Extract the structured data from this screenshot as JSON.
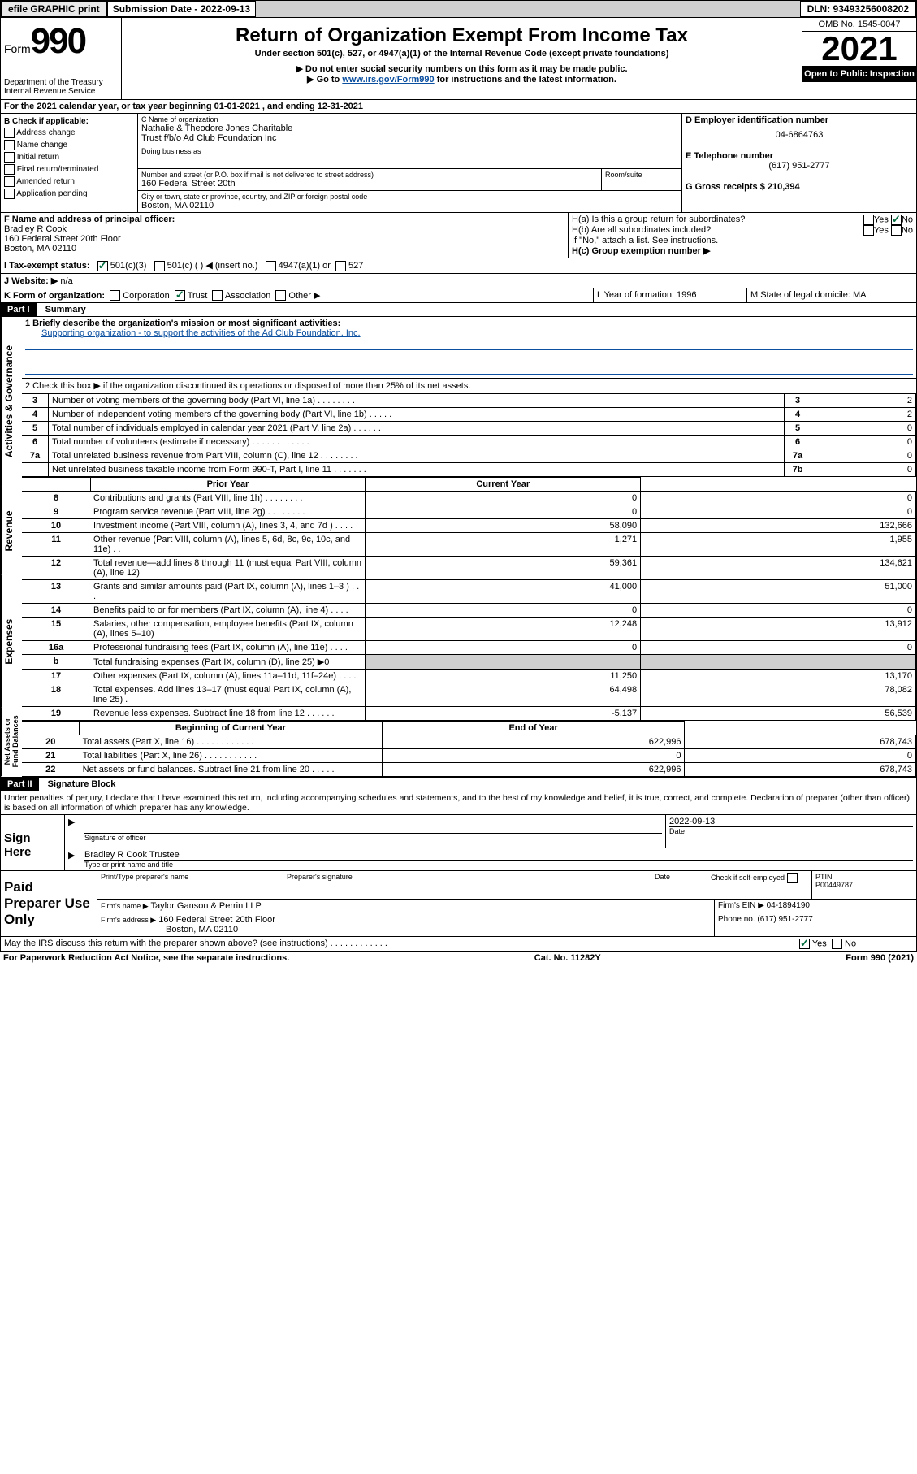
{
  "topbar": {
    "efile": "efile GRAPHIC print",
    "subdate_label": "Submission Date - 2022-09-13",
    "dln": "DLN: 93493256008202"
  },
  "header": {
    "form_prefix": "Form",
    "form_no": "990",
    "dept": "Department of the Treasury",
    "irs": "Internal Revenue Service",
    "title": "Return of Organization Exempt From Income Tax",
    "subtitle": "Under section 501(c), 527, or 4947(a)(1) of the Internal Revenue Code (except private foundations)",
    "note1": "▶ Do not enter social security numbers on this form as it may be made public.",
    "note2_pre": "▶ Go to ",
    "note2_link": "www.irs.gov/Form990",
    "note2_post": " for instructions and the latest information.",
    "omb": "OMB No. 1545-0047",
    "year": "2021",
    "inspect": "Open to Public Inspection"
  },
  "lineA": "For the 2021 calendar year, or tax year beginning 01-01-2021       , and ending 12-31-2021",
  "sectionB": {
    "title": "B Check if applicable:",
    "items": [
      "Address change",
      "Name change",
      "Initial return",
      "Final return/terminated",
      "Amended return",
      "Application pending"
    ]
  },
  "sectionC": {
    "name_label": "C Name of organization",
    "name1": "Nathalie & Theodore Jones Charitable",
    "name2": "Trust f/b/o Ad Club Foundation Inc",
    "dba": "Doing business as",
    "addr_label": "Number and street (or P.O. box if mail is not delivered to street address)",
    "addr": "160 Federal Street 20th",
    "room": "Room/suite",
    "city_label": "City or town, state or province, country, and ZIP or foreign postal code",
    "city": "Boston, MA  02110"
  },
  "sectionD": {
    "d_label": "D Employer identification number",
    "ein": "04-6864763",
    "e_label": "E Telephone number",
    "phone": "(617) 951-2777",
    "g_label": "G Gross receipts $ 210,394"
  },
  "sectionF": {
    "label": "F  Name and address of principal officer:",
    "name": "Bradley R Cook",
    "addr": "160 Federal Street 20th Floor",
    "city": "Boston, MA  02110"
  },
  "sectionH": {
    "ha": "H(a)  Is this a group return for subordinates?",
    "hb": "H(b)  Are all subordinates included?",
    "hb_note": "If \"No,\" attach a list. See instructions.",
    "hc": "H(c)  Group exemption number ▶",
    "yes": "Yes",
    "no": "No"
  },
  "sectionI": {
    "label": "I    Tax-exempt status:",
    "c3": "501(c)(3)",
    "c": "501(c) (  ) ◀ (insert no.)",
    "a1": "4947(a)(1) or",
    "s527": "527"
  },
  "sectionJ": {
    "label": "J    Website: ▶",
    "val": "n/a"
  },
  "sectionK": {
    "label": "K Form of organization:",
    "corp": "Corporation",
    "trust": "Trust",
    "assoc": "Association",
    "other": "Other ▶"
  },
  "sectionL": {
    "label": "L Year of formation: 1996"
  },
  "sectionM": {
    "label": "M State of legal domicile: MA"
  },
  "part1": {
    "header": "Part I",
    "title": "Summary",
    "line1_label": "1   Briefly describe the organization's mission or most significant activities:",
    "line1_text": "Supporting organization - to support the activities of the Ad Club Foundation, Inc.",
    "line2": "2   Check this box ▶         if the organization discontinued its operations or disposed of more than 25% of its net assets.",
    "labels": {
      "g": "Activities & Governance",
      "r": "Revenue",
      "e": "Expenses",
      "n": "Net Assets or Fund Balances"
    },
    "rows": [
      {
        "n": "3",
        "t": "Number of voting members of the governing body (Part VI, line 1a)   .   .   .   .   .   .   .   .",
        "r": "3",
        "v": "2"
      },
      {
        "n": "4",
        "t": "Number of independent voting members of the governing body (Part VI, line 1b)   .   .   .   .   .",
        "r": "4",
        "v": "2"
      },
      {
        "n": "5",
        "t": "Total number of individuals employed in calendar year 2021 (Part V, line 2a)   .   .   .   .   .   .",
        "r": "5",
        "v": "0"
      },
      {
        "n": "6",
        "t": "Total number of volunteers (estimate if necessary)   .   .   .   .   .   .   .   .   .   .   .   .",
        "r": "6",
        "v": "0"
      },
      {
        "n": "7a",
        "t": "Total unrelated business revenue from Part VIII, column (C), line 12   .   .   .   .   .   .   .   .",
        "r": "7a",
        "v": "0"
      },
      {
        "n": "",
        "t": "Net unrelated business taxable income from Form 990-T, Part I, line 11   .   .   .   .   .   .   .",
        "r": "7b",
        "v": "0"
      }
    ],
    "col_prior": "Prior Year",
    "col_current": "Current Year",
    "rev": [
      {
        "n": "8",
        "t": "Contributions and grants (Part VIII, line 1h)   .   .   .   .   .   .   .   .",
        "p": "0",
        "c": "0"
      },
      {
        "n": "9",
        "t": "Program service revenue (Part VIII, line 2g)   .   .   .   .   .   .   .   .",
        "p": "0",
        "c": "0"
      },
      {
        "n": "10",
        "t": "Investment income (Part VIII, column (A), lines 3, 4, and 7d )   .   .   .   .",
        "p": "58,090",
        "c": "132,666"
      },
      {
        "n": "11",
        "t": "Other revenue (Part VIII, column (A), lines 5, 6d, 8c, 9c, 10c, and 11e)   .   .",
        "p": "1,271",
        "c": "1,955"
      },
      {
        "n": "12",
        "t": "Total revenue—add lines 8 through 11 (must equal Part VIII, column (A), line 12)",
        "p": "59,361",
        "c": "134,621"
      }
    ],
    "exp": [
      {
        "n": "13",
        "t": "Grants and similar amounts paid (Part IX, column (A), lines 1–3 )   .   .   .",
        "p": "41,000",
        "c": "51,000"
      },
      {
        "n": "14",
        "t": "Benefits paid to or for members (Part IX, column (A), line 4)   .   .   .   .",
        "p": "0",
        "c": "0"
      },
      {
        "n": "15",
        "t": "Salaries, other compensation, employee benefits (Part IX, column (A), lines 5–10)",
        "p": "12,248",
        "c": "13,912"
      },
      {
        "n": "16a",
        "t": "Professional fundraising fees (Part IX, column (A), line 11e)   .   .   .   .",
        "p": "0",
        "c": "0"
      },
      {
        "n": "b",
        "t": "Total fundraising expenses (Part IX, column (D), line 25) ▶0",
        "p": "",
        "c": "",
        "shaded": true
      },
      {
        "n": "17",
        "t": "Other expenses (Part IX, column (A), lines 11a–11d, 11f–24e)   .   .   .   .",
        "p": "11,250",
        "c": "13,170"
      },
      {
        "n": "18",
        "t": "Total expenses. Add lines 13–17 (must equal Part IX, column (A), line 25)   .",
        "p": "64,498",
        "c": "78,082"
      },
      {
        "n": "19",
        "t": "Revenue less expenses. Subtract line 18 from line 12   .   .   .   .   .   .",
        "p": "-5,137",
        "c": "56,539"
      }
    ],
    "col_begin": "Beginning of Current Year",
    "col_end": "End of Year",
    "net": [
      {
        "n": "20",
        "t": "Total assets (Part X, line 16)   .   .   .   .   .   .   .   .   .   .   .   .",
        "p": "622,996",
        "c": "678,743"
      },
      {
        "n": "21",
        "t": "Total liabilities (Part X, line 26)   .   .   .   .   .   .   .   .   .   .   .",
        "p": "0",
        "c": "0"
      },
      {
        "n": "22",
        "t": "Net assets or fund balances. Subtract line 21 from line 20   .   .   .   .   .",
        "p": "622,996",
        "c": "678,743"
      }
    ]
  },
  "part2": {
    "header": "Part II",
    "title": "Signature Block",
    "declaration": "Under penalties of perjury, I declare that I have examined this return, including accompanying schedules and statements, and to the best of my knowledge and belief, it is true, correct, and complete. Declaration of preparer (other than officer) is based on all information of which preparer has any knowledge.",
    "sign_here": "Sign Here",
    "sig_of_officer": "Signature of officer",
    "date": "Date",
    "date_val": "2022-09-13",
    "officer_name": "Bradley R Cook  Trustee",
    "officer_label": "Type or print name and title",
    "paid": "Paid Preparer Use Only",
    "prep_name": "Print/Type preparer's name",
    "prep_sig": "Preparer's signature",
    "check_self": "Check         if self-employed",
    "ptin": "PTIN",
    "ptin_val": "P00449787",
    "firm_name_label": "Firm's name     ▶",
    "firm_name": "Taylor Ganson & Perrin LLP",
    "firm_ein": "Firm's EIN ▶ 04-1894190",
    "firm_addr_label": "Firm's address ▶",
    "firm_addr": "160 Federal Street 20th Floor",
    "firm_city": "Boston, MA  02110",
    "firm_phone": "Phone no. (617) 951-2777",
    "may_irs": "May the IRS discuss this return with the preparer shown above? (see instructions)   .   .   .   .   .   .   .   .   .   .   .   ."
  },
  "footer": {
    "pra": "For Paperwork Reduction Act Notice, see the separate instructions.",
    "cat": "Cat. No. 11282Y",
    "form": "Form 990 (2021)"
  }
}
